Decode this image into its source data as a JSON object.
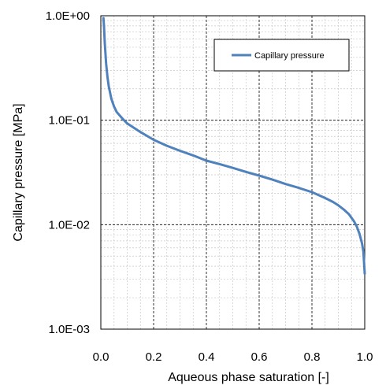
{
  "chart_data": {
    "type": "line",
    "title": "",
    "xlabel": "Aqueous phase saturation  [-]",
    "ylabel": "Capillary pressure [MPa]",
    "xlim": [
      0,
      1
    ],
    "ylim": [
      0.001,
      1
    ],
    "yscale": "log",
    "grid": true,
    "legend_position": "top-right",
    "x_ticks": [
      0,
      0.2,
      0.4,
      0.6,
      0.8,
      1
    ],
    "x_tick_labels": [
      "0.0",
      "0.2",
      "0.4",
      "0.6",
      "0.8",
      "1.0"
    ],
    "y_ticks": [
      1,
      0.1,
      0.01,
      0.001
    ],
    "y_tick_labels": [
      "1.0E+00",
      "1.0E-01",
      "1.0E-02",
      "1.0E-03"
    ],
    "series": [
      {
        "name": "Capillary pressure",
        "color": "#4f81bd",
        "x": [
          0.01,
          0.012,
          0.015,
          0.02,
          0.025,
          0.03,
          0.04,
          0.05,
          0.06,
          0.08,
          0.1,
          0.15,
          0.2,
          0.25,
          0.3,
          0.35,
          0.4,
          0.45,
          0.5,
          0.55,
          0.6,
          0.65,
          0.7,
          0.75,
          0.8,
          0.85,
          0.88,
          0.9,
          0.92,
          0.94,
          0.96,
          0.97,
          0.98,
          0.99,
          0.995,
          1.0
        ],
        "y": [
          0.95,
          0.8,
          0.55,
          0.35,
          0.26,
          0.21,
          0.16,
          0.135,
          0.12,
          0.105,
          0.093,
          0.077,
          0.065,
          0.057,
          0.051,
          0.046,
          0.041,
          0.038,
          0.035,
          0.032,
          0.0295,
          0.027,
          0.0245,
          0.0225,
          0.0205,
          0.018,
          0.0165,
          0.0153,
          0.014,
          0.0126,
          0.0107,
          0.0096,
          0.0082,
          0.0066,
          0.0055,
          0.0034
        ]
      }
    ]
  }
}
